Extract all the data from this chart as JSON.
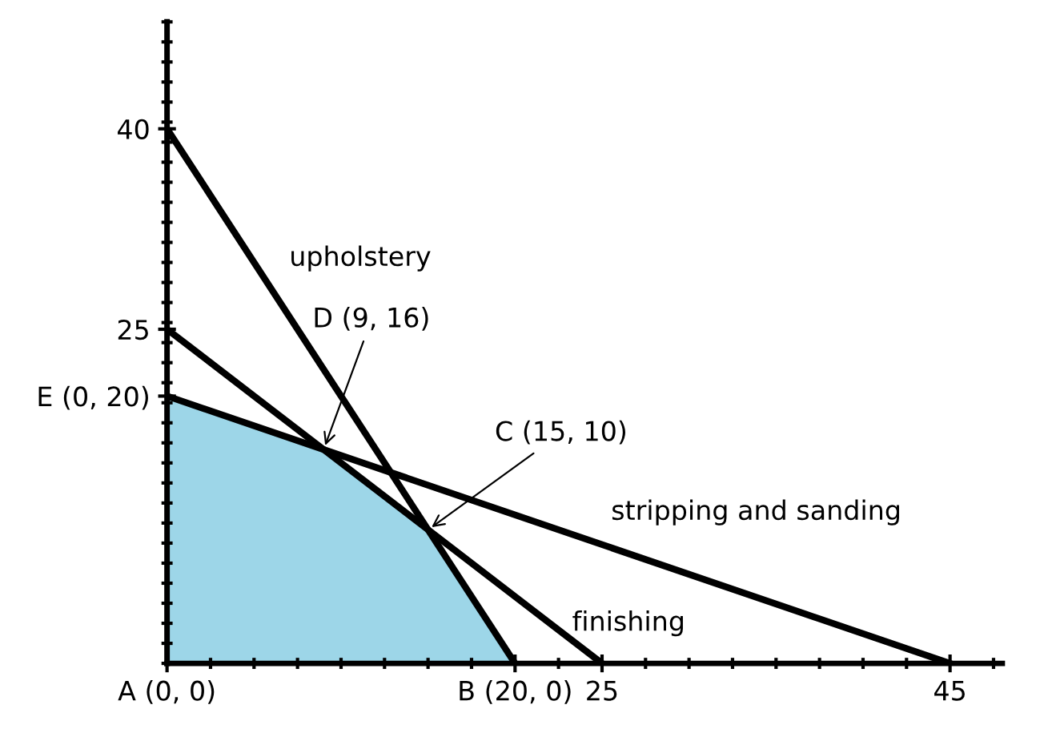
{
  "chart_data": {
    "type": "line",
    "series": [
      {
        "type": "area",
        "color": "#9dd6e8",
        "x": [
          0,
          9,
          15,
          20
        ],
        "values": [
          20,
          16,
          10,
          0
        ]
      },
      {
        "name": "upholstery",
        "color": "#000000",
        "x": [
          0,
          20
        ],
        "values": [
          40,
          0
        ]
      },
      {
        "name": "finishing",
        "color": "#000000",
        "x": [
          0,
          25
        ],
        "values": [
          25,
          0
        ]
      },
      {
        "name": "stripping and sanding",
        "color": "#000000",
        "x": [
          0,
          45
        ],
        "values": [
          20,
          0
        ]
      }
    ],
    "xlim": [
      0,
      48
    ],
    "ylim": [
      0,
      48
    ],
    "xticks": [
      {
        "value": 0,
        "label": "A (0, 0)"
      },
      {
        "value": 20,
        "label": "B (20, 0)"
      },
      25,
      45
    ],
    "yticks": [
      {
        "value": 20,
        "label": "E (0, 20)"
      },
      25,
      40
    ],
    "annotations": [
      {
        "text": "D (9, 16)",
        "x": 9,
        "y": 16
      },
      {
        "text": "C (15, 10)",
        "x": 15,
        "y": 10
      }
    ],
    "grid": false,
    "legend": false,
    "line_style": "solid",
    "marker": "none"
  }
}
